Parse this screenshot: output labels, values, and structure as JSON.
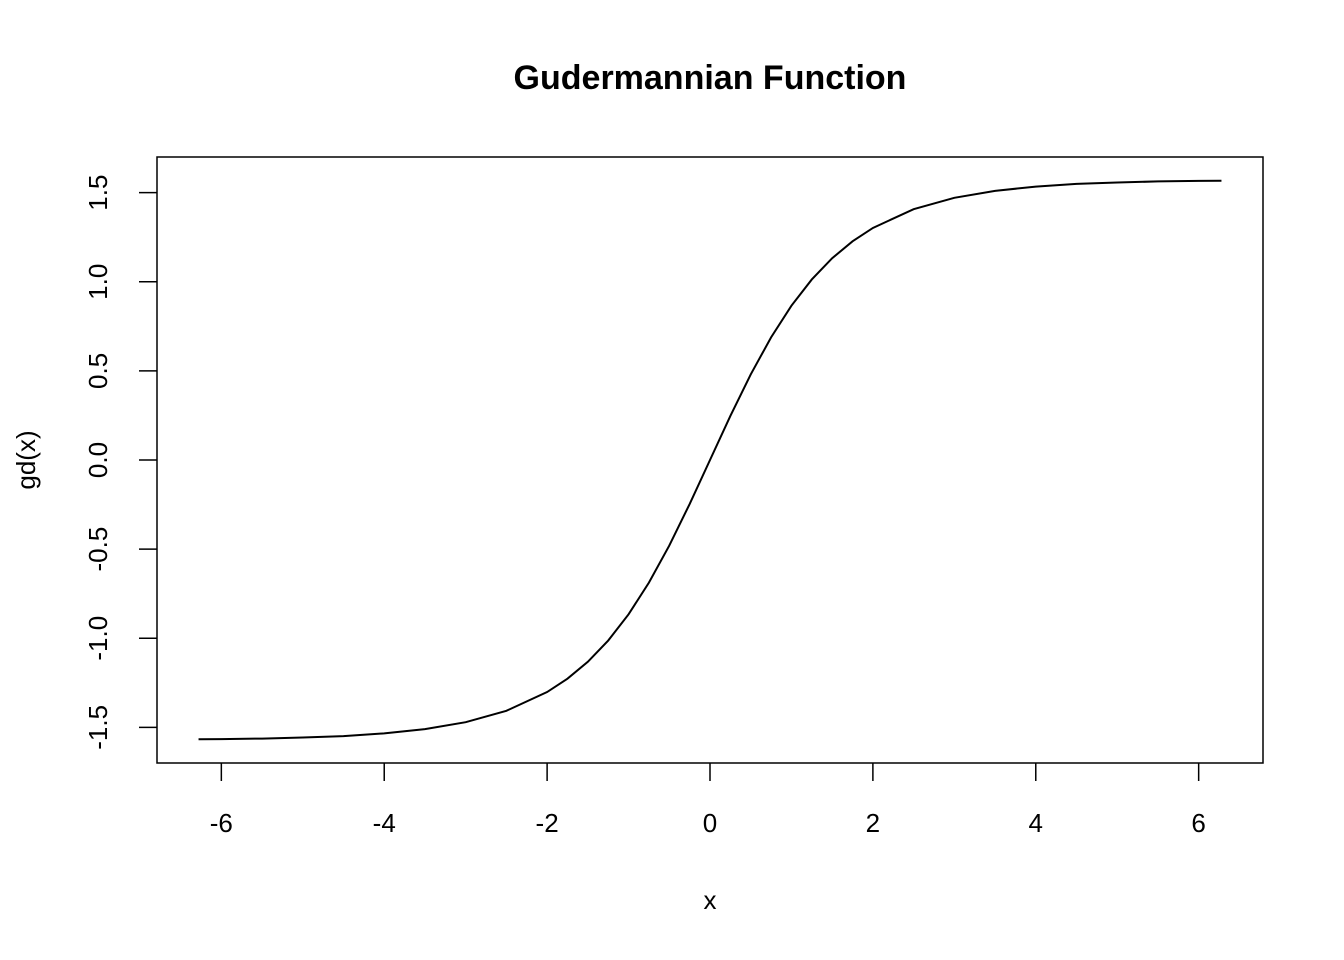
{
  "chart_data": {
    "type": "line",
    "title": "Gudermannian Function",
    "x_label": "x",
    "y_label": "gd(x)",
    "x": [
      -6.28,
      -6,
      -5.5,
      -5,
      -4.5,
      -4,
      -3.5,
      -3,
      -2.5,
      -2,
      -1.75,
      -1.5,
      -1.25,
      -1,
      -0.75,
      -0.5,
      -0.25,
      0,
      0.25,
      0.5,
      0.75,
      1,
      1.25,
      1.5,
      1.75,
      2,
      2.5,
      3,
      3.5,
      4,
      4.5,
      5,
      5.5,
      6,
      6.28
    ],
    "values": [
      -1.567,
      -1.566,
      -1.563,
      -1.557,
      -1.549,
      -1.534,
      -1.51,
      -1.471,
      -1.407,
      -1.302,
      -1.227,
      -1.132,
      -1.013,
      -0.866,
      -0.688,
      -0.48,
      -0.247,
      0,
      0.247,
      0.48,
      0.688,
      0.866,
      1.013,
      1.132,
      1.227,
      1.302,
      1.407,
      1.471,
      1.51,
      1.534,
      1.549,
      1.557,
      1.563,
      1.566,
      1.567
    ],
    "color": "#000000",
    "xlim": [
      -6.79,
      6.79
    ],
    "xticks": [
      -6,
      -4,
      -2,
      0,
      2,
      4,
      6
    ],
    "ylim": [
      -1.7,
      1.7
    ],
    "yticks": [
      {
        "value": -1.5,
        "label": "-1.5"
      },
      {
        "value": -1,
        "label": "-1.0"
      },
      {
        "value": -0.5,
        "label": "-0.5"
      },
      {
        "value": 0,
        "label": "0.0"
      },
      {
        "value": 0.5,
        "label": "0.5"
      },
      {
        "value": 1,
        "label": "1.0"
      },
      {
        "value": 1.5,
        "label": "1.5"
      }
    ],
    "grid": false
  }
}
